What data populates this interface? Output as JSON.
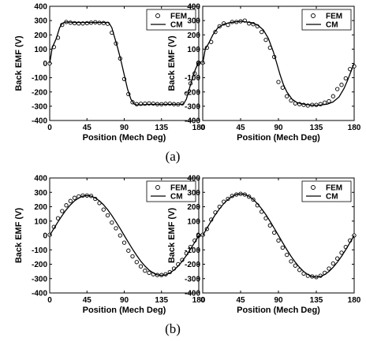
{
  "captions": {
    "a": "(a)",
    "b": "(b)"
  },
  "chart_data": [
    {
      "type": "line",
      "xlabel": "Position (Mech Deg)",
      "ylabel": "Back EMF (V)",
      "xlim": [
        0,
        180
      ],
      "ylim": [
        -400,
        400
      ],
      "xticks": [
        "0",
        "45",
        "90",
        "135",
        "180"
      ],
      "yticks": [
        "400",
        "300",
        "200",
        "100",
        "0",
        "-100",
        "-200",
        "-300",
        "-400"
      ],
      "legend_position": "top-right",
      "grid": false,
      "series": [
        {
          "name": "FEM",
          "style": "markers",
          "x": [
            0,
            5,
            10,
            15,
            20,
            25,
            30,
            35,
            40,
            45,
            50,
            55,
            60,
            65,
            70,
            75,
            80,
            85,
            90,
            95,
            100,
            105,
            110,
            115,
            120,
            125,
            130,
            135,
            140,
            145,
            150,
            155,
            160,
            165,
            170,
            175,
            180
          ],
          "y": [
            0,
            115,
            180,
            270,
            290,
            285,
            282,
            280,
            280,
            282,
            285,
            288,
            284,
            283,
            278,
            215,
            140,
            35,
            -110,
            -215,
            -272,
            -285,
            -283,
            -282,
            -280,
            -282,
            -285,
            -286,
            -283,
            -282,
            -285,
            -287,
            -280,
            -210,
            -140,
            -70,
            5
          ]
        },
        {
          "name": "CM",
          "style": "line",
          "x": [
            0,
            3,
            8,
            12,
            15,
            18,
            20,
            30,
            40,
            50,
            60,
            70,
            72,
            75,
            78,
            82,
            86,
            90,
            94,
            98,
            102,
            105,
            108,
            110,
            120,
            130,
            140,
            150,
            160,
            162,
            165,
            168,
            172,
            176,
            180
          ],
          "y": [
            0,
            110,
            175,
            250,
            280,
            288,
            290,
            287,
            287,
            287,
            287,
            287,
            280,
            250,
            190,
            110,
            20,
            -80,
            -180,
            -250,
            -285,
            -290,
            -290,
            -290,
            -287,
            -287,
            -287,
            -287,
            -287,
            -280,
            -250,
            -190,
            -110,
            -40,
            10
          ]
        }
      ]
    },
    {
      "type": "line",
      "xlabel": "Position (Mech Deg)",
      "ylabel": "Back EMF (V)",
      "xlim": [
        0,
        180
      ],
      "ylim": [
        -400,
        400
      ],
      "xticks": [
        "0",
        "45",
        "90",
        "135",
        "180"
      ],
      "yticks": [
        "400",
        "300",
        "200",
        "100",
        "0",
        "-100",
        "-200",
        "-300",
        "-400"
      ],
      "legend_position": "top-right",
      "grid": false,
      "series": [
        {
          "name": "FEM",
          "style": "markers",
          "x": [
            0,
            5,
            10,
            15,
            20,
            25,
            30,
            35,
            40,
            45,
            50,
            55,
            60,
            65,
            70,
            75,
            80,
            85,
            90,
            95,
            100,
            105,
            110,
            115,
            120,
            125,
            130,
            135,
            140,
            145,
            150,
            155,
            160,
            165,
            170,
            175,
            180
          ],
          "y": [
            5,
            110,
            150,
            220,
            260,
            280,
            270,
            290,
            290,
            295,
            300,
            280,
            275,
            260,
            220,
            165,
            110,
            45,
            -130,
            -170,
            -230,
            -260,
            -280,
            -285,
            -290,
            -295,
            -290,
            -290,
            -285,
            -275,
            -265,
            -230,
            -180,
            -150,
            -105,
            -40,
            -20
          ]
        },
        {
          "name": "CM",
          "style": "line",
          "x": [
            0,
            3,
            7,
            12,
            18,
            25,
            32,
            40,
            45,
            50,
            58,
            65,
            72,
            78,
            84,
            88,
            92,
            96,
            100,
            106,
            112,
            120,
            128,
            135,
            140,
            148,
            155,
            162,
            168,
            172,
            176,
            180
          ],
          "y": [
            0,
            100,
            140,
            200,
            250,
            275,
            285,
            292,
            295,
            292,
            285,
            270,
            235,
            175,
            80,
            0,
            -80,
            -150,
            -200,
            -250,
            -275,
            -285,
            -292,
            -295,
            -292,
            -285,
            -270,
            -235,
            -175,
            -120,
            -60,
            0
          ]
        }
      ]
    },
    {
      "type": "line",
      "xlabel": "Position (Mech Deg)",
      "ylabel": "Back EMF (V)",
      "xlim": [
        0,
        180
      ],
      "ylim": [
        -400,
        400
      ],
      "xticks": [
        "0",
        "45",
        "90",
        "135",
        "180"
      ],
      "yticks": [
        "400",
        "300",
        "200",
        "100",
        "0",
        "-100",
        "-200",
        "-300",
        "-400"
      ],
      "legend_position": "top-right",
      "grid": false,
      "series": [
        {
          "name": "FEM",
          "style": "markers",
          "x": [
            0,
            5,
            10,
            15,
            20,
            25,
            30,
            35,
            40,
            45,
            50,
            55,
            60,
            65,
            70,
            75,
            80,
            85,
            90,
            95,
            100,
            105,
            110,
            115,
            120,
            125,
            130,
            135,
            140,
            145,
            150,
            155,
            160,
            165,
            170,
            175,
            180
          ],
          "y": [
            5,
            60,
            120,
            170,
            210,
            240,
            262,
            272,
            278,
            278,
            275,
            255,
            225,
            180,
            140,
            90,
            50,
            0,
            -50,
            -105,
            -145,
            -185,
            -215,
            -245,
            -260,
            -270,
            -275,
            -275,
            -270,
            -255,
            -230,
            -200,
            -170,
            -125,
            -80,
            -35,
            0
          ]
        },
        {
          "name": "CM",
          "style": "line",
          "x": [
            0,
            5,
            10,
            15,
            20,
            25,
            30,
            35,
            40,
            45,
            50,
            55,
            60,
            65,
            70,
            75,
            80,
            85,
            90,
            95,
            100,
            105,
            110,
            115,
            120,
            125,
            130,
            135,
            140,
            145,
            150,
            155,
            160,
            165,
            170,
            175,
            180
          ],
          "y": [
            0,
            48,
            95,
            139,
            179,
            213,
            241,
            261,
            274,
            278,
            274,
            261,
            241,
            213,
            179,
            139,
            95,
            48,
            0,
            -48,
            -95,
            -139,
            -179,
            -213,
            -241,
            -261,
            -274,
            -278,
            -274,
            -261,
            -241,
            -213,
            -179,
            -139,
            -95,
            -48,
            0
          ]
        }
      ]
    },
    {
      "type": "line",
      "xlabel": "Position (Mech Deg)",
      "ylabel": "Back EMF (V)",
      "xlim": [
        0,
        180
      ],
      "ylim": [
        -400,
        400
      ],
      "xticks": [
        "0",
        "45",
        "90",
        "135",
        "180"
      ],
      "yticks": [
        "400",
        "300",
        "200",
        "100",
        "0",
        "-100",
        "-200",
        "-300",
        "-400"
      ],
      "legend_position": "top-right",
      "grid": false,
      "series": [
        {
          "name": "FEM",
          "style": "markers",
          "x": [
            0,
            5,
            10,
            15,
            20,
            25,
            30,
            35,
            40,
            45,
            50,
            55,
            60,
            65,
            70,
            75,
            80,
            85,
            90,
            95,
            100,
            105,
            110,
            115,
            120,
            125,
            130,
            135,
            140,
            145,
            150,
            155,
            160,
            165,
            170,
            175,
            180
          ],
          "y": [
            5,
            45,
            110,
            160,
            200,
            235,
            255,
            275,
            285,
            290,
            285,
            270,
            250,
            210,
            165,
            120,
            70,
            20,
            -35,
            -85,
            -135,
            -180,
            -210,
            -240,
            -265,
            -280,
            -285,
            -290,
            -280,
            -260,
            -230,
            -195,
            -160,
            -120,
            -80,
            -35,
            0
          ]
        },
        {
          "name": "CM",
          "style": "line",
          "x": [
            0,
            5,
            10,
            15,
            20,
            25,
            30,
            35,
            40,
            45,
            50,
            55,
            60,
            65,
            70,
            75,
            80,
            85,
            90,
            95,
            100,
            105,
            110,
            115,
            120,
            125,
            130,
            135,
            140,
            145,
            150,
            155,
            160,
            165,
            170,
            175,
            180
          ],
          "y": [
            0,
            50,
            99,
            145,
            186,
            222,
            251,
            272,
            286,
            290,
            286,
            272,
            251,
            222,
            186,
            145,
            99,
            50,
            0,
            -50,
            -99,
            -145,
            -186,
            -222,
            -251,
            -272,
            -286,
            -290,
            -286,
            -272,
            -251,
            -222,
            -186,
            -145,
            -99,
            -50,
            0
          ]
        }
      ]
    }
  ]
}
